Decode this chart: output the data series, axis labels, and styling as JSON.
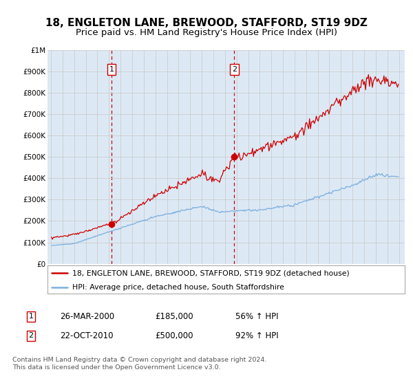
{
  "title": "18, ENGLETON LANE, BREWOOD, STAFFORD, ST19 9DZ",
  "subtitle": "Price paid vs. HM Land Registry's House Price Index (HPI)",
  "title_fontsize": 11,
  "subtitle_fontsize": 9.5,
  "background_color": "#ffffff",
  "plot_bg_color": "#dce9f5",
  "grid_color": "#cccccc",
  "red_line_color": "#cc0000",
  "blue_line_color": "#7aadde",
  "sale1_date_num": 2000.23,
  "sale1_price": 185000,
  "sale1_label": "1",
  "sale2_date_num": 2010.81,
  "sale2_price": 500000,
  "sale2_label": "2",
  "ylim": [
    0,
    1000000
  ],
  "xlim_start": 1994.7,
  "xlim_end": 2025.5,
  "legend_line1": "18, ENGLETON LANE, BREWOOD, STAFFORD, ST19 9DZ (detached house)",
  "legend_line2": "HPI: Average price, detached house, South Staffordshire",
  "annotation1_date": "26-MAR-2000",
  "annotation1_price": "£185,000",
  "annotation1_hpi": "56% ↑ HPI",
  "annotation2_date": "22-OCT-2010",
  "annotation2_price": "£500,000",
  "annotation2_hpi": "92% ↑ HPI",
  "footer": "Contains HM Land Registry data © Crown copyright and database right 2024.\nThis data is licensed under the Open Government Licence v3.0.",
  "ytick_labels": [
    "£0",
    "£100K",
    "£200K",
    "£300K",
    "£400K",
    "£500K",
    "£600K",
    "£700K",
    "£800K",
    "£900K",
    "£1M"
  ],
  "ytick_values": [
    0,
    100000,
    200000,
    300000,
    400000,
    500000,
    600000,
    700000,
    800000,
    900000,
    1000000
  ]
}
